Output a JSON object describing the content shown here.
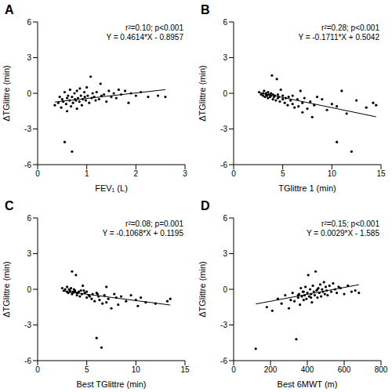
{
  "chart_data": [
    {
      "type": "scatter",
      "title": "A",
      "x_label": "FEV₁ (L)",
      "y_label": "ΔTGlittre (min)",
      "color": "#000000",
      "xlim": [
        0,
        3
      ],
      "xticks": [
        0,
        1,
        2,
        3
      ],
      "ylim": [
        -6,
        6
      ],
      "yticks": [
        -6,
        -3,
        0,
        3,
        6
      ],
      "annotations": [
        "r²=0.10; p<0.001",
        "Y = 0.4614*X - 0.8957"
      ],
      "fit": {
        "slope": 0.4614,
        "intercept": -0.8957
      },
      "x": [
        0.35,
        0.42,
        0.45,
        0.48,
        0.5,
        0.52,
        0.55,
        0.55,
        0.58,
        0.6,
        0.6,
        0.62,
        0.65,
        0.66,
        0.68,
        0.7,
        0.7,
        0.72,
        0.75,
        0.76,
        0.78,
        0.8,
        0.8,
        0.82,
        0.85,
        0.86,
        0.88,
        0.9,
        0.92,
        0.95,
        0.96,
        0.98,
        1.0,
        1.02,
        1.05,
        1.08,
        1.1,
        1.12,
        1.15,
        1.18,
        1.2,
        1.25,
        1.28,
        1.3,
        1.35,
        1.4,
        1.45,
        1.5,
        1.55,
        1.6,
        1.65,
        1.7,
        1.78,
        1.85,
        1.9,
        2.0,
        2.1,
        2.25,
        2.45,
        2.6
      ],
      "values": [
        -1.0,
        -0.8,
        -0.3,
        -1.2,
        -0.5,
        -0.7,
        -4.1,
        0.1,
        -0.9,
        -0.4,
        -1.5,
        -0.2,
        -0.6,
        0.3,
        -1.1,
        -4.9,
        -0.3,
        -0.8,
        0.0,
        -0.5,
        -0.6,
        -1.3,
        0.2,
        -0.4,
        -0.7,
        0.4,
        -0.2,
        -1.0,
        -0.5,
        0.1,
        -0.3,
        -0.6,
        0.5,
        -0.2,
        -0.8,
        1.4,
        -0.4,
        0.0,
        -0.3,
        -0.6,
        0.1,
        -0.5,
        0.8,
        -0.2,
        -0.1,
        -0.7,
        0.2,
        -0.3,
        0.0,
        -0.4,
        0.3,
        -0.1,
        0.2,
        -0.8,
        0.0,
        -0.2,
        0.1,
        -0.3,
        -0.2,
        -0.3
      ]
    },
    {
      "type": "scatter",
      "title": "B",
      "x_label": "TGlittre 1 (min)",
      "y_label": "ΔTGlittre (min)",
      "color": "#000000",
      "xlim": [
        0,
        15
      ],
      "xticks": [
        0,
        5,
        10,
        15
      ],
      "ylim": [
        -6,
        6
      ],
      "yticks": [
        -6,
        -3,
        0,
        3,
        6
      ],
      "annotations": [
        "r²=0.28; p<0.001",
        "Y = -0.1711*X + 0.5042"
      ],
      "fit": {
        "slope": -0.1711,
        "intercept": 0.5042
      },
      "x": [
        2.6,
        2.8,
        3.0,
        3.0,
        3.1,
        3.2,
        3.3,
        3.3,
        3.4,
        3.5,
        3.5,
        3.6,
        3.7,
        3.8,
        3.8,
        3.9,
        4.0,
        4.0,
        4.1,
        4.2,
        4.3,
        4.4,
        4.5,
        4.5,
        4.6,
        4.7,
        4.8,
        5.0,
        5.0,
        5.2,
        5.3,
        5.5,
        5.6,
        5.8,
        6.0,
        6.0,
        6.2,
        6.5,
        6.6,
        6.8,
        7.0,
        7.0,
        7.2,
        7.5,
        7.8,
        8.0,
        8.2,
        8.5,
        9.0,
        9.5,
        10.0,
        10.5,
        10.5,
        11.0,
        11.5,
        12.0,
        12.5,
        13.5,
        14.2,
        14.5
      ],
      "values": [
        0.1,
        -0.1,
        0.0,
        -0.2,
        0.2,
        -0.3,
        0.0,
        -0.1,
        -0.2,
        0.1,
        -0.4,
        -0.1,
        -0.3,
        0.0,
        -0.2,
        1.5,
        -0.5,
        -0.1,
        -0.3,
        -0.2,
        -0.6,
        1.2,
        -0.4,
        -0.1,
        -0.3,
        -0.7,
        0.3,
        -0.5,
        -0.2,
        -0.8,
        -0.4,
        -1.0,
        -0.3,
        -0.6,
        -0.9,
        -0.2,
        -1.2,
        -0.5,
        -1.1,
        0.2,
        -0.8,
        -1.6,
        -0.4,
        -1.3,
        -0.7,
        -2.0,
        -1.0,
        -0.3,
        -0.5,
        -1.4,
        -0.9,
        -4.1,
        -1.1,
        0.2,
        -1.7,
        -4.9,
        -0.6,
        -1.2,
        -0.8,
        -1.0
      ]
    },
    {
      "type": "scatter",
      "title": "C",
      "x_label": "Best TGlittre (min)",
      "y_label": "ΔTGlittre (min)",
      "color": "#000000",
      "xlim": [
        0,
        15
      ],
      "xticks": [
        0,
        5,
        10,
        15
      ],
      "ylim": [
        -6,
        6
      ],
      "yticks": [
        -6,
        -3,
        0,
        3,
        6
      ],
      "annotations": [
        "r²=0.08; p=0.001",
        "Y = -0.1068*X + 0.1195"
      ],
      "fit": {
        "slope": -0.1068,
        "intercept": 0.1195
      },
      "x": [
        2.5,
        2.7,
        2.8,
        3.0,
        3.0,
        3.1,
        3.2,
        3.3,
        3.3,
        3.4,
        3.5,
        3.5,
        3.6,
        3.7,
        3.8,
        3.8,
        3.9,
        4.0,
        4.0,
        4.2,
        4.3,
        4.4,
        4.5,
        4.6,
        4.8,
        5.0,
        5.0,
        5.2,
        5.5,
        5.6,
        5.8,
        6.0,
        6.0,
        6.2,
        6.3,
        6.5,
        6.6,
        6.8,
        7.0,
        7.0,
        7.2,
        7.5,
        7.8,
        8.0,
        8.2,
        8.5,
        9.0,
        9.5,
        10.0,
        10.2,
        10.5,
        11.0,
        12.0,
        13.2,
        13.5,
        3.6,
        4.1,
        4.7,
        5.3,
        6.1
      ],
      "values": [
        0.1,
        -0.1,
        0.0,
        -0.2,
        0.2,
        -0.3,
        0.0,
        -0.1,
        -0.2,
        0.1,
        -0.4,
        1.5,
        -0.3,
        0.0,
        -0.2,
        -0.1,
        1.2,
        -0.5,
        -0.3,
        -0.2,
        -0.6,
        -0.1,
        -0.4,
        0.3,
        -0.3,
        -0.7,
        -0.2,
        -0.5,
        -0.8,
        -0.4,
        -1.0,
        -0.3,
        -4.1,
        -0.6,
        -0.9,
        -4.9,
        -1.2,
        -0.5,
        -1.1,
        0.2,
        -0.8,
        -1.6,
        -0.4,
        -0.7,
        -1.3,
        -0.6,
        -1.0,
        -0.5,
        -0.9,
        -1.4,
        -0.7,
        -1.1,
        -1.2,
        -1.0,
        -0.8,
        -0.2,
        -0.3,
        -0.1,
        -0.6,
        -0.4
      ]
    },
    {
      "type": "scatter",
      "title": "D",
      "x_label": "Best 6MWT (m)",
      "y_label": "ΔTGlittre (min)",
      "color": "#000000",
      "xlim": [
        0,
        800
      ],
      "xticks": [
        0,
        200,
        400,
        600,
        800
      ],
      "ylim": [
        -6,
        6
      ],
      "yticks": [
        -6,
        -3,
        0,
        3,
        6
      ],
      "annotations": [
        "r²=0.15; p<0.001",
        "Y = 0.0029*X - 1.585"
      ],
      "fit": {
        "slope": 0.0029,
        "intercept": -1.585
      },
      "x": [
        120,
        180,
        210,
        240,
        260,
        280,
        300,
        310,
        320,
        330,
        340,
        350,
        355,
        360,
        365,
        370,
        375,
        380,
        385,
        390,
        395,
        400,
        405,
        410,
        415,
        420,
        425,
        430,
        435,
        440,
        445,
        450,
        455,
        460,
        465,
        470,
        475,
        480,
        485,
        490,
        495,
        500,
        505,
        510,
        520,
        530,
        540,
        550,
        560,
        570,
        580,
        600,
        620,
        640,
        660,
        680,
        350,
        380,
        420,
        455
      ],
      "values": [
        -5.0,
        -1.5,
        -1.8,
        -0.8,
        -1.2,
        -0.5,
        -1.6,
        -0.9,
        -0.3,
        -1.0,
        -4.2,
        -0.7,
        -0.4,
        -1.3,
        0.1,
        -0.6,
        -0.2,
        -0.9,
        -0.5,
        0.2,
        -0.8,
        -0.3,
        1.2,
        -0.6,
        0.0,
        -0.4,
        -1.1,
        0.3,
        -0.2,
        -0.5,
        1.5,
        -0.1,
        -0.7,
        0.1,
        -0.3,
        0.4,
        -0.6,
        0.0,
        -0.2,
        0.6,
        -0.4,
        0.2,
        -0.1,
        -0.5,
        0.3,
        -0.2,
        0.5,
        0.0,
        -0.3,
        0.2,
        0.1,
        -0.4,
        0.3,
        -0.2,
        -0.1,
        -0.3,
        -0.5,
        -0.2,
        -0.7,
        0.0
      ]
    }
  ]
}
